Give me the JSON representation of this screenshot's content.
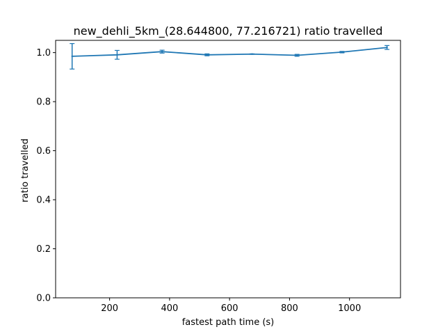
{
  "chart_data": {
    "type": "line",
    "title": "new_dehli_5km_(28.644800, 77.216721) ratio travelled",
    "xlabel": "fastest path time (s)",
    "ylabel": "ratio travelled",
    "xlim": [
      20,
      1170
    ],
    "ylim": [
      0,
      1.05
    ],
    "xticks": [
      200,
      400,
      600,
      800,
      1000
    ],
    "xtick_labels": [
      "200",
      "400",
      "600",
      "800",
      "1000"
    ],
    "yticks": [
      0.0,
      0.2,
      0.4,
      0.6,
      0.8,
      1.0
    ],
    "ytick_labels": [
      "0.0",
      "0.2",
      "0.4",
      "0.6",
      "0.8",
      "1.0"
    ],
    "grid": false,
    "series": [
      {
        "color": "#1f77b4",
        "x": [
          75,
          225,
          375,
          525,
          675,
          825,
          975,
          1125
        ],
        "y": [
          0.985,
          0.991,
          1.004,
          0.991,
          0.994,
          0.989,
          1.002,
          1.021
        ],
        "yerr": [
          0.052,
          0.018,
          0.006,
          0.004,
          0.001,
          0.004,
          0.003,
          0.008
        ]
      }
    ]
  }
}
